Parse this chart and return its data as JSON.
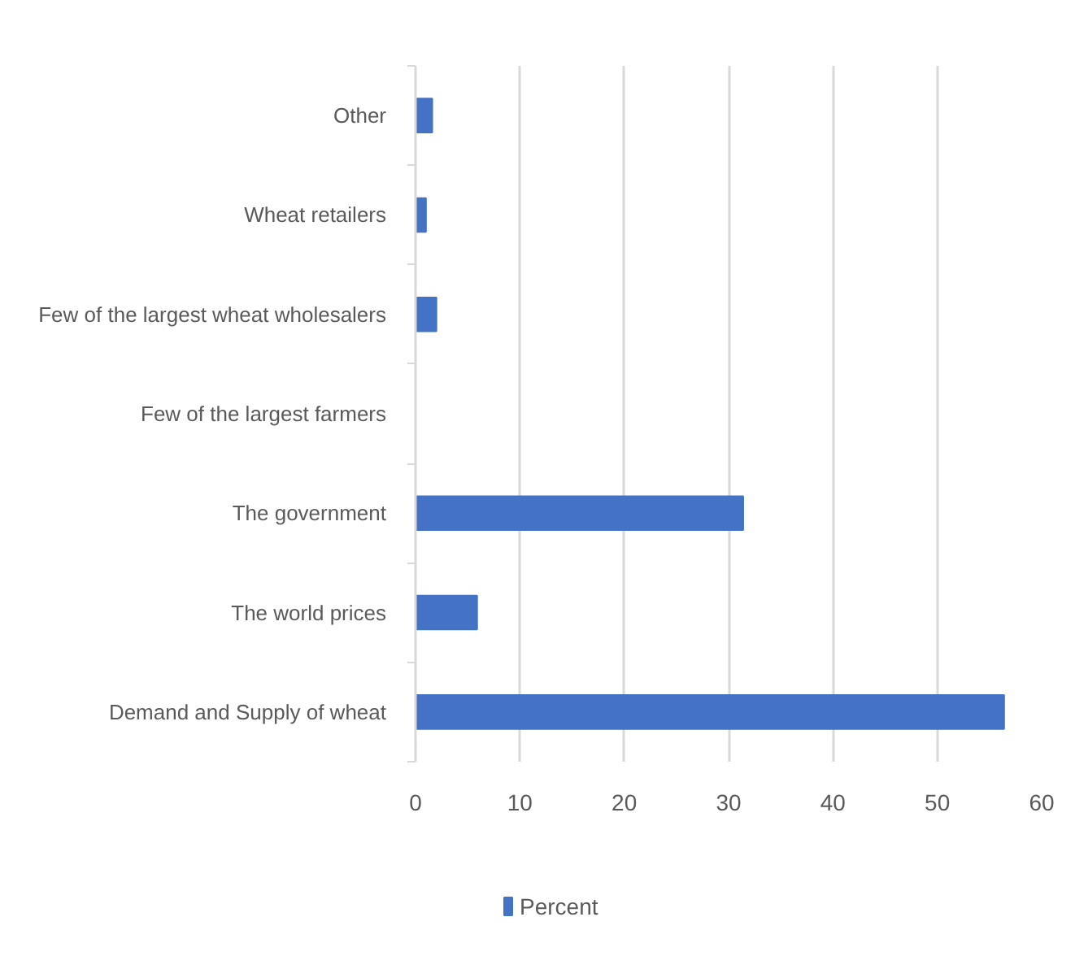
{
  "chart_data": {
    "type": "bar",
    "orientation": "horizontal",
    "categories": [
      "Other",
      "Wheat retailers",
      "Few of the largest wheat wholesalers",
      "Few of the largest farmers",
      "The government",
      "The world prices",
      "Demand and Supply of wheat"
    ],
    "series": [
      {
        "name": "Percent",
        "color": "#4472c4",
        "values": [
          1.6,
          1.0,
          2.0,
          0,
          31.4,
          5.9,
          56.4
        ]
      }
    ],
    "xlim": [
      0,
      60
    ],
    "xticks": [
      0,
      10,
      20,
      30,
      40,
      50,
      60
    ],
    "grid": "x",
    "legend": "bottom"
  }
}
